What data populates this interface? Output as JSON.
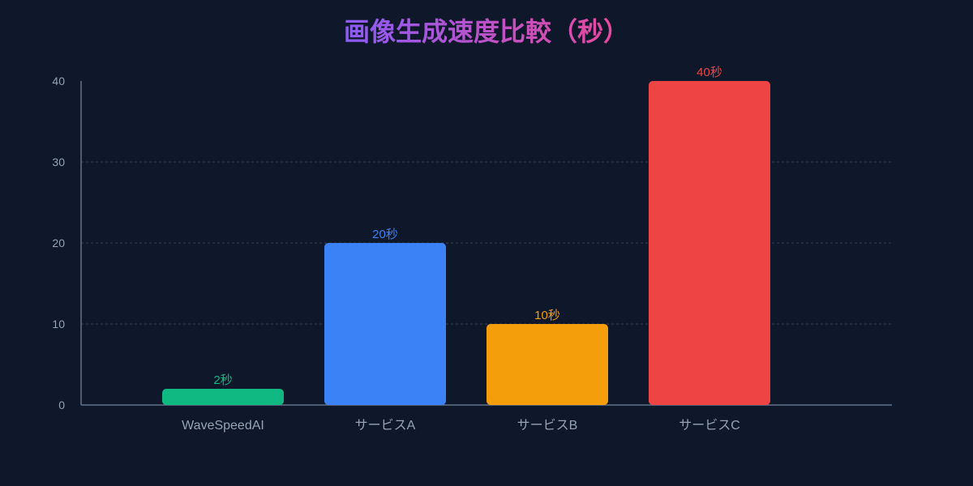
{
  "chart_data": {
    "type": "bar",
    "title": "画像生成速度比較（秒）",
    "categories": [
      "WaveSpeedAI",
      "サービスA",
      "サービスB",
      "サービスC"
    ],
    "values": [
      2,
      20,
      10,
      40
    ],
    "value_labels": [
      "2秒",
      "20秒",
      "10秒",
      "40秒"
    ],
    "bar_colors": [
      "#10b981",
      "#3b82f6",
      "#f59e0b",
      "#ef4444"
    ],
    "ylim": [
      0,
      40
    ],
    "yticks": [
      0,
      10,
      20,
      30,
      40
    ],
    "grid": true,
    "xlabel": "",
    "ylabel": ""
  },
  "colors": {
    "background": "#0f172a",
    "axis": "#64748b",
    "grid": "#334155",
    "tick_text": "#94a3b8",
    "title_gradient_start": "#8b5cf6",
    "title_gradient_end": "#ec4899"
  }
}
